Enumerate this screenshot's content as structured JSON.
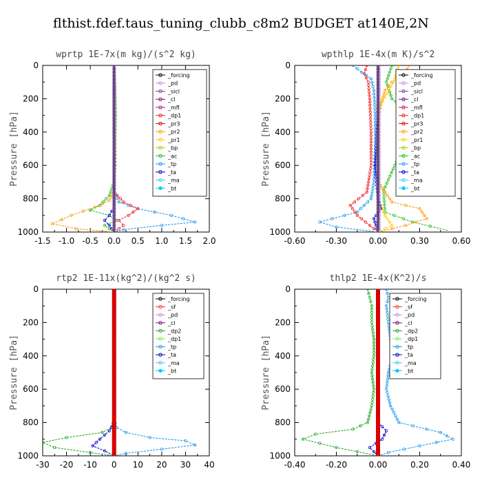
{
  "figure_title": "flthist.fdef.taus_tuning_clubb_c8m2  BUDGET at140E,2N",
  "colors": {
    "forcing": "#000000",
    "pd": "#cc88dd",
    "sicl": "#7744aa",
    "cl": "#771177",
    "mfl": "#cc1166",
    "dp1": "#ee2222",
    "pr3": "#dd0000",
    "pr2": "#ff9900",
    "pr1": "#ffcc00",
    "bp": "#aacc00",
    "ac": "#22bb22",
    "tp": "#2299ee",
    "ta": "#0000cc",
    "ma": "#44ccee",
    "bt": "#00ccff",
    "sf": "#ff3333",
    "dp2": "#22aa22",
    "dp1b": "#77ee55",
    "redbar": "#ee0000"
  },
  "chart_data": [
    {
      "type": "line",
      "title": "wprtp  1E-7x(m kg)/(s^2 kg)",
      "ylabel": "Pressure [hPa]",
      "xlim": [
        -1.5,
        2.0
      ],
      "ylim": [
        1000,
        0
      ],
      "xticks": [
        "-1.5",
        "-1.0",
        "-0.5",
        "0.0",
        "0.5",
        "1.0",
        "1.5",
        "2.0"
      ],
      "xtick_values": [
        -1.5,
        -1.0,
        -0.5,
        0.0,
        0.5,
        1.0,
        1.5,
        2.0
      ],
      "yticks": [
        "0",
        "200",
        "400",
        "600",
        "800",
        "1000"
      ],
      "ytick_values": [
        0,
        200,
        400,
        600,
        800,
        1000
      ],
      "legend": [
        "_forcing",
        "_pd",
        "_sicl",
        "_cl",
        "_mfl",
        "_dp1",
        "_pr3",
        "_pr2",
        "_pr1",
        "_bp",
        "_ac",
        "_tp",
        "_ta",
        "_ma",
        "_bt"
      ],
      "series": [
        {
          "key": "ac",
          "x": [
            0,
            0.02,
            0.03,
            0.02,
            0.02,
            0.0,
            -0.1,
            -0.3,
            -0.5,
            -0.1,
            0.05,
            -0.2,
            0.0
          ],
          "y": [
            0,
            150,
            300,
            450,
            600,
            700,
            780,
            840,
            870,
            900,
            930,
            960,
            1000
          ]
        },
        {
          "key": "pr2",
          "x": [
            0,
            0,
            0,
            0.0,
            -0.1,
            -0.4,
            -0.9,
            -1.3,
            -0.8,
            0.0
          ],
          "y": [
            0,
            300,
            600,
            750,
            810,
            850,
            900,
            950,
            980,
            1000
          ]
        },
        {
          "key": "tp",
          "x": [
            0,
            0,
            0,
            0.0,
            0.1,
            0.5,
            1.2,
            1.7,
            1.0,
            0.2,
            0.0
          ],
          "y": [
            0,
            300,
            600,
            750,
            820,
            860,
            900,
            940,
            960,
            985,
            1000
          ]
        },
        {
          "key": "dp1",
          "x": [
            0,
            0,
            0.0,
            0.2,
            0.5,
            0.3,
            0.1,
            0.2,
            0.0
          ],
          "y": [
            0,
            400,
            760,
            820,
            860,
            900,
            930,
            960,
            1000
          ]
        },
        {
          "key": "ta",
          "x": [
            0,
            0,
            0.0,
            -0.1,
            -0.2,
            -0.1,
            0.0
          ],
          "y": [
            0,
            500,
            850,
            900,
            930,
            960,
            1000
          ]
        },
        {
          "key": "forcing",
          "x": [
            0,
            0,
            0,
            0,
            0,
            0
          ],
          "y": [
            0,
            200,
            400,
            600,
            800,
            1000
          ]
        },
        {
          "key": "pd",
          "x": [
            0.01,
            0.01,
            0.01,
            0.01,
            0.01,
            0.01
          ],
          "y": [
            0,
            200,
            400,
            600,
            800,
            1000
          ]
        }
      ]
    },
    {
      "type": "line",
      "title": "wpthlp  1E-4x(m K)/s^2",
      "ylabel": "Pressure [hPa]",
      "xlim": [
        -0.6,
        0.6
      ],
      "ylim": [
        1000,
        0
      ],
      "xticks": [
        "-0.60",
        "-0.30",
        "0.00",
        "0.30",
        "0.60"
      ],
      "xtick_values": [
        -0.6,
        -0.3,
        0.0,
        0.3,
        0.6
      ],
      "yticks": [
        "0",
        "200",
        "400",
        "600",
        "800",
        "1000"
      ],
      "ytick_values": [
        0,
        200,
        400,
        600,
        800,
        1000
      ],
      "legend": [
        "_forcing",
        "_pd",
        "_sicl",
        "_cl",
        "_mfl",
        "_dp1",
        "_pr3",
        "_pr2",
        "_pr1",
        "_bp",
        "_ac",
        "_tp",
        "_ta",
        "_ma",
        "_bt"
      ],
      "series": [
        {
          "key": "tp",
          "x": [
            -0.18,
            -0.12,
            -0.05,
            -0.03,
            -0.02,
            -0.02,
            -0.03,
            -0.05,
            -0.15,
            -0.42,
            -0.3,
            0.0
          ],
          "y": [
            0,
            40,
            80,
            150,
            300,
            500,
            700,
            800,
            880,
            940,
            970,
            1000
          ]
        },
        {
          "key": "ac",
          "x": [
            0.1,
            0.06,
            0.1,
            0.25,
            0.26,
            0.12,
            0.04,
            0.05,
            0.25,
            0.5
          ],
          "y": [
            0,
            100,
            200,
            300,
            400,
            600,
            750,
            880,
            940,
            990
          ]
        },
        {
          "key": "pr2",
          "x": [
            0.22,
            0.2,
            0.1,
            0.05,
            0.0,
            0.0,
            0.1,
            0.3,
            0.35,
            0.2,
            0.0
          ],
          "y": [
            0,
            50,
            100,
            150,
            300,
            700,
            820,
            860,
            920,
            960,
            1000
          ]
        },
        {
          "key": "pr1",
          "x": [
            0.15,
            0.12,
            0.08,
            0.0,
            0.0,
            0.05,
            0.1,
            0.0
          ],
          "y": [
            0,
            80,
            150,
            250,
            800,
            900,
            960,
            1000
          ]
        },
        {
          "key": "dp1",
          "x": [
            -0.08,
            -0.1,
            -0.07,
            -0.06,
            -0.05,
            -0.05,
            -0.08,
            -0.2,
            -0.15,
            0.0
          ],
          "y": [
            0,
            50,
            100,
            200,
            400,
            600,
            760,
            840,
            900,
            1000
          ]
        },
        {
          "key": "ta",
          "x": [
            0,
            0,
            -0.02,
            0,
            0.02,
            -0.03,
            0.0
          ],
          "y": [
            0,
            300,
            600,
            800,
            860,
            920,
            1000
          ]
        },
        {
          "key": "pd",
          "x": [
            0.01,
            0.01,
            0.01,
            0.01,
            0.01,
            0.01
          ],
          "y": [
            0,
            200,
            400,
            600,
            800,
            1000
          ]
        },
        {
          "key": "forcing",
          "x": [
            0,
            0,
            0,
            0,
            0,
            0
          ],
          "y": [
            0,
            200,
            400,
            600,
            800,
            1000
          ]
        }
      ]
    },
    {
      "type": "line",
      "title": "rtp2  1E-11x(kg^2)/(kg^2 s)",
      "ylabel": "Pressure [hPa]",
      "xlim": [
        -30,
        40
      ],
      "ylim": [
        1000,
        0
      ],
      "xticks": [
        "-30",
        "-20",
        "-10",
        "0",
        "10",
        "20",
        "30",
        "40"
      ],
      "xtick_values": [
        -30,
        -20,
        -10,
        0,
        10,
        20,
        30,
        40
      ],
      "yticks": [
        "0",
        "200",
        "400",
        "600",
        "800",
        "1000"
      ],
      "ytick_values": [
        0,
        200,
        400,
        600,
        800,
        1000
      ],
      "legend": [
        "_forcing",
        "_sf",
        "_pd",
        "_cl",
        "_dp2",
        "_dp1",
        "_tp",
        "_ta",
        "_ma",
        "_bt"
      ],
      "series": [
        {
          "key": "dp2",
          "x": [
            0,
            0,
            0,
            -1,
            -5,
            -20,
            -30,
            -25,
            -10,
            0
          ],
          "y": [
            0,
            400,
            780,
            830,
            860,
            890,
            920,
            950,
            980,
            1000
          ]
        },
        {
          "key": "tp",
          "x": [
            0,
            0,
            0,
            1,
            5,
            15,
            30,
            34,
            20,
            5,
            0
          ],
          "y": [
            0,
            400,
            780,
            830,
            860,
            890,
            910,
            935,
            960,
            985,
            1000
          ]
        },
        {
          "key": "ta",
          "x": [
            0,
            0,
            0,
            -2,
            -6,
            -9,
            -4,
            0
          ],
          "y": [
            0,
            500,
            800,
            850,
            900,
            940,
            970,
            1000
          ]
        },
        {
          "key": "sf",
          "x": [
            0,
            0,
            0,
            0,
            0,
            0
          ],
          "y": [
            0,
            200,
            400,
            600,
            800,
            1000
          ]
        }
      ]
    },
    {
      "type": "line",
      "title": "thlp2  1E-4x(K^2)/s",
      "ylabel": "Pressure [hPa]",
      "xlim": [
        -0.4,
        0.4
      ],
      "ylim": [
        1000,
        0
      ],
      "xticks": [
        "-0.40",
        "-0.20",
        "0.00",
        "0.20",
        "0.40"
      ],
      "xtick_values": [
        -0.4,
        -0.2,
        0.0,
        0.2,
        0.4
      ],
      "yticks": [
        "0",
        "200",
        "400",
        "600",
        "800",
        "1000"
      ],
      "ytick_values": [
        0,
        200,
        400,
        600,
        800,
        1000
      ],
      "legend": [
        "_forcing",
        "_sf",
        "_pd",
        "_cl",
        "_dp2",
        "_dp1",
        "_tp",
        "_ta",
        "_ma",
        "_bt"
      ],
      "series": [
        {
          "key": "dp2",
          "x": [
            -0.05,
            -0.04,
            -0.03,
            -0.03,
            -0.02,
            -0.02,
            -0.03,
            -0.02,
            -0.03,
            -0.05,
            -0.12,
            -0.3,
            -0.36,
            -0.2,
            0.0
          ],
          "y": [
            0,
            50,
            100,
            200,
            300,
            400,
            500,
            600,
            700,
            800,
            840,
            870,
            900,
            950,
            1000
          ]
        },
        {
          "key": "tp",
          "x": [
            0.04,
            0.05,
            0.04,
            0.05,
            0.06,
            0.07,
            0.05,
            0.04,
            0.06,
            0.1,
            0.3,
            0.36,
            0.2,
            0.05,
            0.0
          ],
          "y": [
            0,
            50,
            100,
            200,
            300,
            400,
            500,
            600,
            700,
            800,
            860,
            900,
            940,
            980,
            1000
          ]
        },
        {
          "key": "ta",
          "x": [
            0,
            0,
            0.0,
            0.04,
            0.02,
            -0.04,
            0.0
          ],
          "y": [
            0,
            400,
            800,
            850,
            900,
            950,
            1000
          ]
        },
        {
          "key": "sf",
          "x": [
            0,
            0,
            0,
            0,
            0,
            0
          ],
          "y": [
            0,
            200,
            400,
            600,
            800,
            1000
          ]
        }
      ]
    }
  ]
}
